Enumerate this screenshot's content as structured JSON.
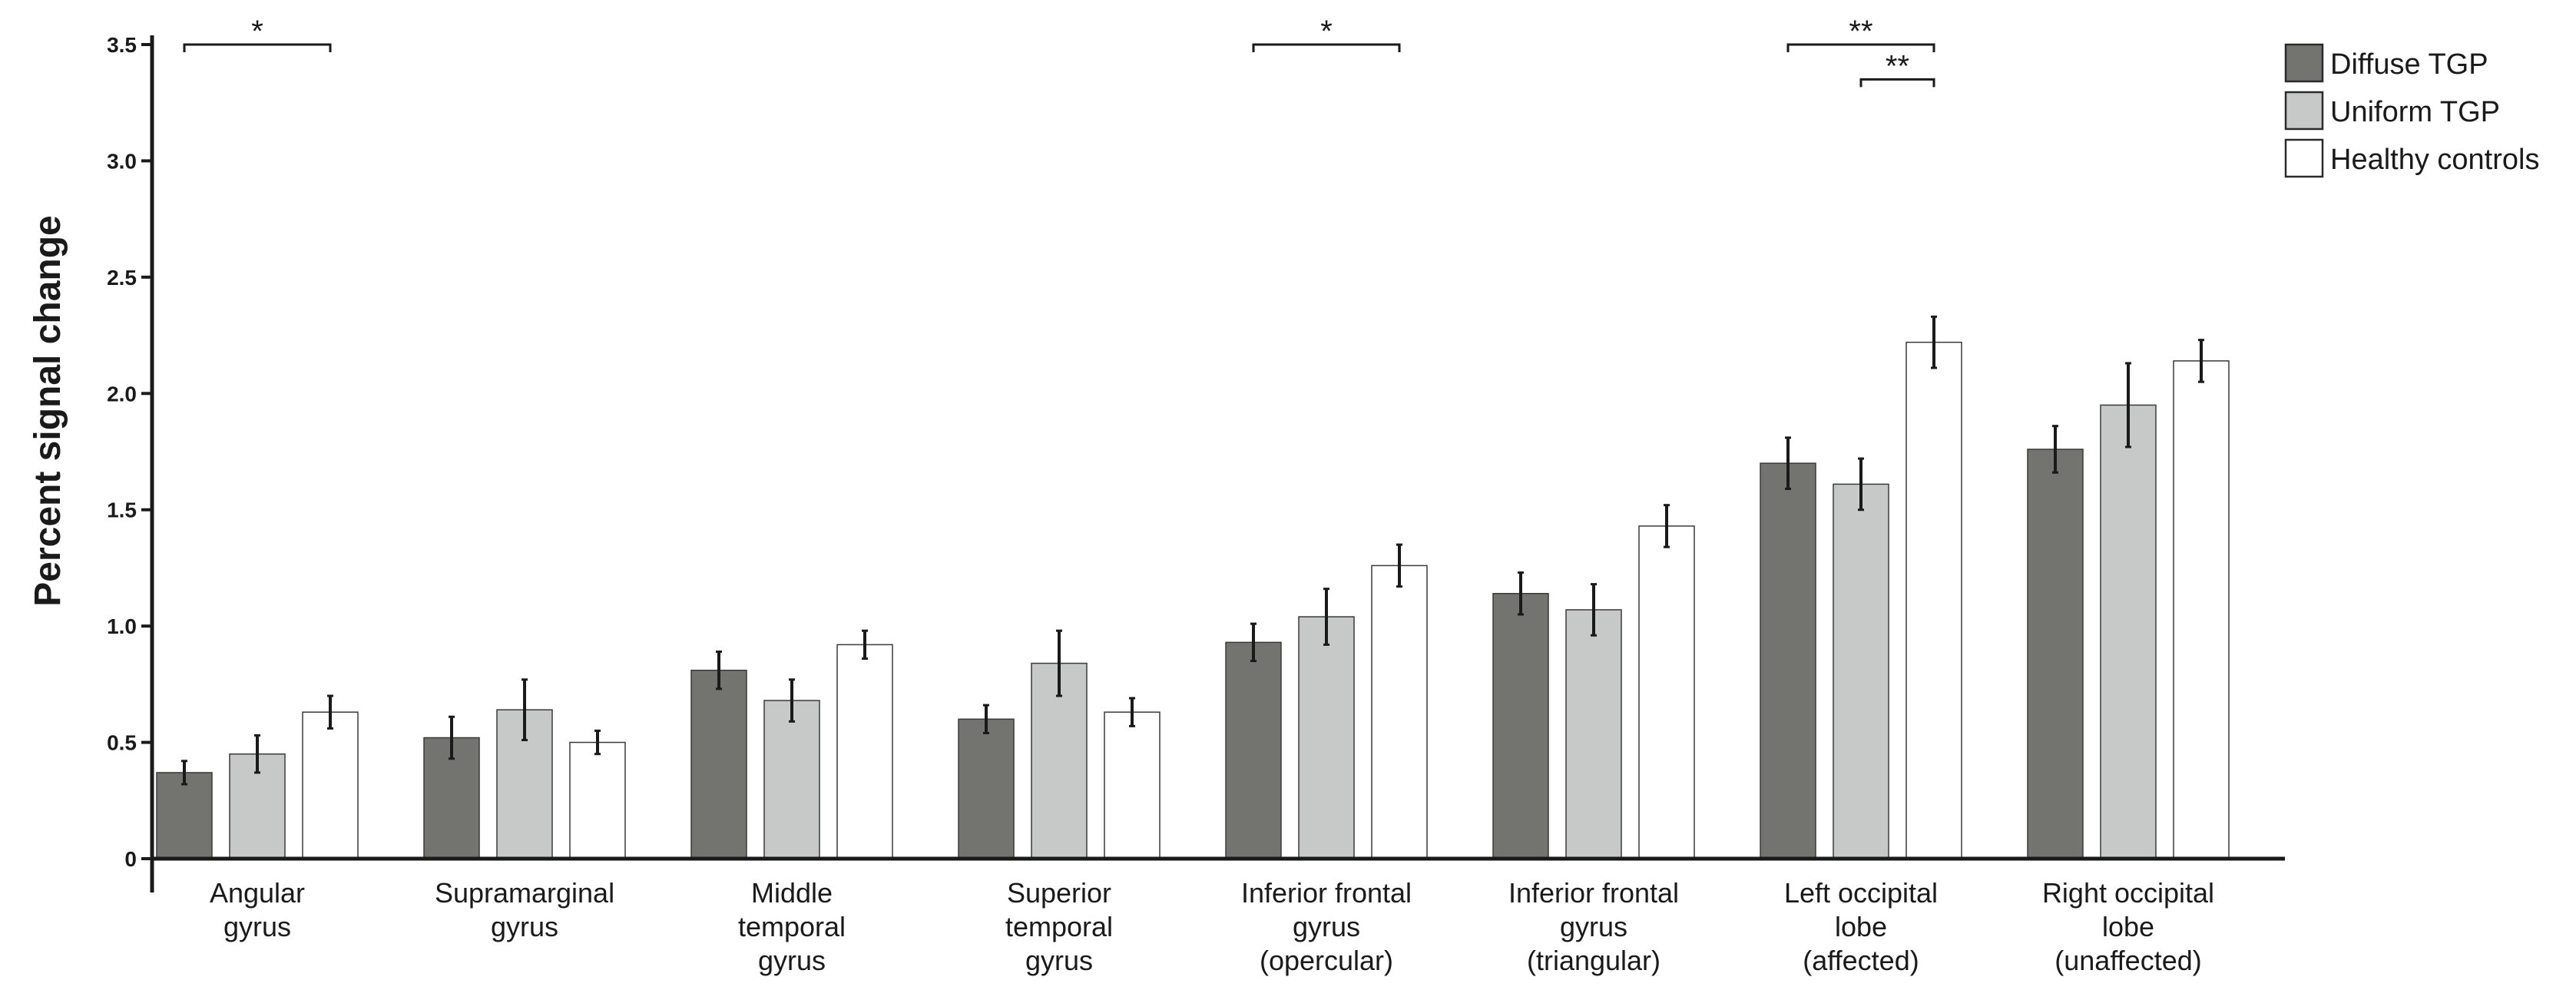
{
  "chart_data": {
    "type": "bar",
    "title": "",
    "xlabel": "",
    "ylabel": "Percent signal change",
    "ylim": [
      0,
      3.5
    ],
    "yticks": [
      {
        "value": 0,
        "label": "0"
      },
      {
        "value": 0.5,
        "label": "0.5"
      },
      {
        "value": 1.0,
        "label": "1.0"
      },
      {
        "value": 1.5,
        "label": "1.5"
      },
      {
        "value": 2.0,
        "label": "2.0"
      },
      {
        "value": 2.5,
        "label": "2.5"
      },
      {
        "value": 3.0,
        "label": "3.0"
      },
      {
        "value": 3.5,
        "label": "3.5"
      }
    ],
    "grid": false,
    "legend_position": "top-right",
    "categories": [
      [
        "Angular",
        "gyrus"
      ],
      [
        "Supramarginal",
        "gyrus"
      ],
      [
        "Middle",
        "temporal",
        "gyrus"
      ],
      [
        "Superior",
        "temporal",
        "gyrus"
      ],
      [
        "Inferior frontal",
        "gyrus",
        "(opercular)"
      ],
      [
        "Inferior frontal",
        "gyrus",
        "(triangular)"
      ],
      [
        "Left occipital",
        "lobe",
        "(affected)"
      ],
      [
        "Right occipital",
        "lobe",
        "(unaffected)"
      ]
    ],
    "series": [
      {
        "name": "Diffuse TGP",
        "color": "#737470",
        "values": [
          0.37,
          0.52,
          0.81,
          0.6,
          0.93,
          1.14,
          1.7,
          1.76
        ],
        "errors": [
          0.05,
          0.09,
          0.08,
          0.06,
          0.08,
          0.09,
          0.11,
          0.1
        ]
      },
      {
        "name": "Uniform TGP",
        "color": "#c6c9c7",
        "values": [
          0.45,
          0.64,
          0.68,
          0.84,
          1.04,
          1.07,
          1.61,
          1.95
        ],
        "errors": [
          0.08,
          0.13,
          0.09,
          0.14,
          0.12,
          0.11,
          0.11,
          0.18
        ]
      },
      {
        "name": "Healthy controls",
        "color": "#ffffff",
        "values": [
          0.63,
          0.5,
          0.92,
          0.63,
          1.26,
          1.43,
          2.22,
          2.14
        ],
        "errors": [
          0.07,
          0.05,
          0.06,
          0.06,
          0.09,
          0.09,
          0.11,
          0.09
        ]
      }
    ],
    "annotations": [
      {
        "category": 0,
        "from_series": 0,
        "to_series": 2,
        "y": 3.5,
        "label": "*"
      },
      {
        "category": 4,
        "from_series": 0,
        "to_series": 2,
        "y": 3.5,
        "label": "*"
      },
      {
        "category": 6,
        "from_series": 0,
        "to_series": 2,
        "y": 3.5,
        "label": "**"
      },
      {
        "category": 6,
        "from_series": 1,
        "to_series": 2,
        "y": 3.35,
        "label": "**"
      }
    ]
  }
}
